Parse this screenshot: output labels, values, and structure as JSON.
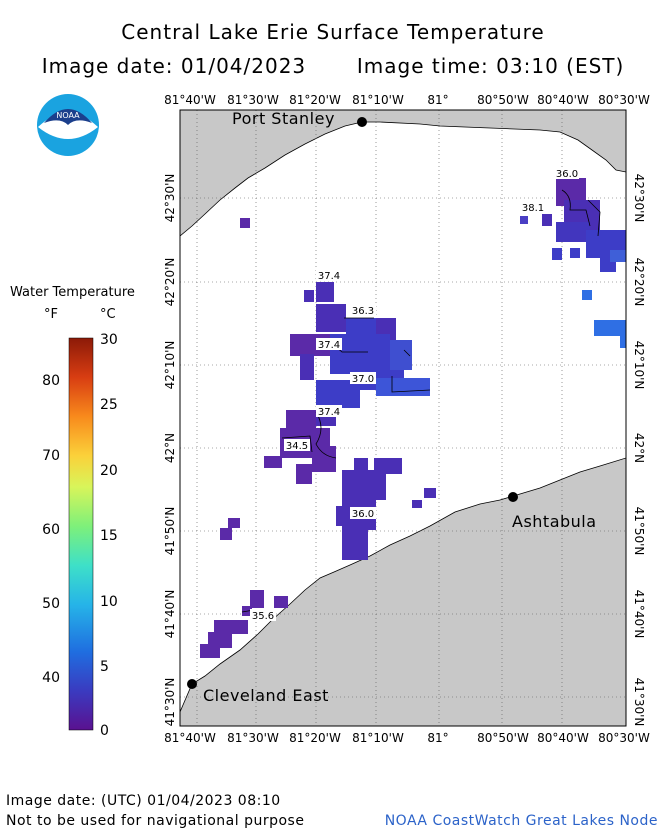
{
  "title": "Central Lake Erie Surface Temperature",
  "image_date_label": "Image date: 01/04/2023",
  "image_time_label": "Image time: 03:10 (EST)",
  "logo_text": "NOAA",
  "legend": {
    "title": "Water Temperature",
    "unit_f": "°F",
    "unit_c": "°C",
    "f_ticks": [
      "80",
      "70",
      "60",
      "50",
      "40"
    ],
    "c_ticks": [
      "30",
      "25",
      "20",
      "15",
      "10",
      "5",
      "0"
    ],
    "colors": [
      "#5a1190",
      "#3a3bc0",
      "#1f6ee0",
      "#26b4e8",
      "#3ee0c8",
      "#7ef07a",
      "#d8f55a",
      "#fbd13a",
      "#f88a1c",
      "#d83d12",
      "#8c1a08"
    ]
  },
  "axes": {
    "lon_labels": [
      "81°40'W",
      "81°30'W",
      "81°20'W",
      "81°10'W",
      "81°",
      "80°50'W",
      "80°40'W",
      "80°30'W"
    ],
    "lat_labels": [
      "42°30'N",
      "42°20'N",
      "42°10'N",
      "42°N",
      "41°50'N",
      "41°40'N",
      "41°30'N"
    ]
  },
  "places": {
    "port_stanley": "Port Stanley",
    "ashtabula": "Ashtabula",
    "cleveland_east": "Cleveland East"
  },
  "contour_labels": [
    "36.0",
    "38.1",
    "37.4",
    "36.3",
    "37.4",
    "37.0",
    "37.4",
    "34.5",
    "36.0",
    "35.6"
  ],
  "colors": {
    "land": "#c8c8c8",
    "water": "#ffffff",
    "cold": "#5b2aa8",
    "cool": "#3d3dc7",
    "mid": "#3f5fd8",
    "warm": "#2f6fe4"
  },
  "footer": {
    "utc_date": "Image date: (UTC) 01/04/2023  08:10",
    "disclaimer": "Not to be used for navigational purpose",
    "credit": "NOAA CoastWatch Great Lakes Node"
  }
}
